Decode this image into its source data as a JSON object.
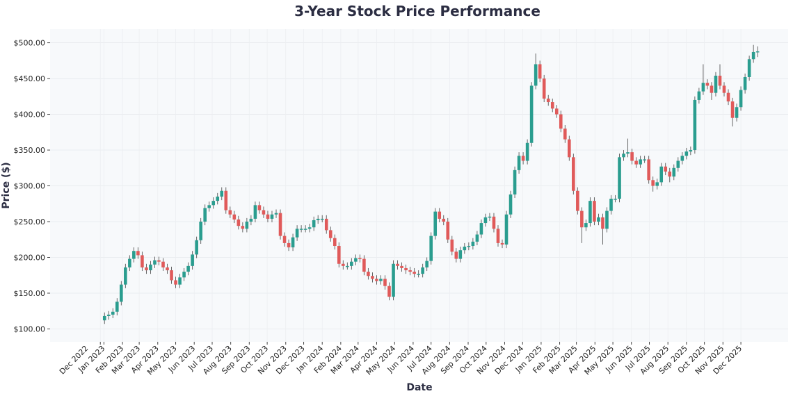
{
  "chart_data": {
    "type": "candlestick",
    "title": "3-Year Stock Price Performance",
    "xlabel": "Date",
    "ylabel": "Price ($)",
    "xlim": [
      "2022-10-03",
      "2026-02-18"
    ],
    "ylim": [
      82,
      519
    ],
    "grid": true,
    "legend": "none",
    "colors": {
      "up": "#2a9d8f",
      "down": "#e05a5a",
      "wick": "#555555",
      "plot_bg": "#f7f9fb",
      "title": "#2b2d42"
    },
    "y_ticks": [
      {
        "value": 100,
        "label": "$100.00"
      },
      {
        "value": 150,
        "label": "$150.00"
      },
      {
        "value": 200,
        "label": "$200.00"
      },
      {
        "value": 250,
        "label": "$250.00"
      },
      {
        "value": 300,
        "label": "$300.00"
      },
      {
        "value": 350,
        "label": "$350.00"
      },
      {
        "value": 400,
        "label": "$400.00"
      },
      {
        "value": 450,
        "label": "$450.00"
      },
      {
        "value": 500,
        "label": "$500.00"
      }
    ],
    "x_ticks": [
      {
        "date": "2022-12-26",
        "label": "Dec 2022"
      },
      {
        "date": "2023-01-01",
        "label": "Jan 2023"
      },
      {
        "date": "2023-02-01",
        "label": "Feb 2023"
      },
      {
        "date": "2023-03-01",
        "label": "Mar 2023"
      },
      {
        "date": "2023-04-01",
        "label": "Apr 2023"
      },
      {
        "date": "2023-05-01",
        "label": "May 2023"
      },
      {
        "date": "2023-06-01",
        "label": "Jun 2023"
      },
      {
        "date": "2023-07-01",
        "label": "Jul 2023"
      },
      {
        "date": "2023-08-01",
        "label": "Aug 2023"
      },
      {
        "date": "2023-09-01",
        "label": "Sep 2023"
      },
      {
        "date": "2023-10-01",
        "label": "Oct 2023"
      },
      {
        "date": "2023-11-01",
        "label": "Nov 2023"
      },
      {
        "date": "2023-12-01",
        "label": "Dec 2023"
      },
      {
        "date": "2024-01-01",
        "label": "Jan 2024"
      },
      {
        "date": "2024-02-01",
        "label": "Feb 2024"
      },
      {
        "date": "2024-03-01",
        "label": "Mar 2024"
      },
      {
        "date": "2024-04-01",
        "label": "Apr 2024"
      },
      {
        "date": "2024-05-01",
        "label": "May 2024"
      },
      {
        "date": "2024-06-01",
        "label": "Jun 2024"
      },
      {
        "date": "2024-07-01",
        "label": "Jul 2024"
      },
      {
        "date": "2024-08-01",
        "label": "Aug 2024"
      },
      {
        "date": "2024-09-01",
        "label": "Sep 2024"
      },
      {
        "date": "2024-10-01",
        "label": "Oct 2024"
      },
      {
        "date": "2024-11-01",
        "label": "Nov 2024"
      },
      {
        "date": "2024-12-01",
        "label": "Dec 2024"
      },
      {
        "date": "2025-01-01",
        "label": "Jan 2025"
      },
      {
        "date": "2025-02-01",
        "label": "Feb 2025"
      },
      {
        "date": "2025-03-01",
        "label": "Mar 2025"
      },
      {
        "date": "2025-04-01",
        "label": "Apr 2025"
      },
      {
        "date": "2025-05-01",
        "label": "May 2025"
      },
      {
        "date": "2025-06-01",
        "label": "Jun 2025"
      },
      {
        "date": "2025-07-01",
        "label": "Jul 2025"
      },
      {
        "date": "2025-08-01",
        "label": "Aug 2025"
      },
      {
        "date": "2025-09-01",
        "label": "Sep 2025"
      },
      {
        "date": "2025-10-01",
        "label": "Oct 2025"
      },
      {
        "date": "2025-11-01",
        "label": "Nov 2025"
      },
      {
        "date": "2025-12-01",
        "label": "Dec 2025"
      }
    ],
    "ohlc_fields": [
      "date",
      "open",
      "high",
      "low",
      "close"
    ],
    "ohlc": [
      [
        "2023-01-02",
        112,
        123,
        107,
        118
      ],
      [
        "2023-01-09",
        118,
        125,
        113,
        120
      ],
      [
        "2023-01-16",
        120,
        129,
        115,
        124
      ],
      [
        "2023-01-23",
        124,
        143,
        119,
        138
      ],
      [
        "2023-01-30",
        138,
        167,
        133,
        162
      ],
      [
        "2023-02-06",
        162,
        191,
        157,
        186
      ],
      [
        "2023-02-13",
        186,
        203,
        181,
        198
      ],
      [
        "2023-02-20",
        198,
        214,
        193,
        209
      ],
      [
        "2023-02-27",
        209,
        214,
        198,
        203
      ],
      [
        "2023-03-06",
        203,
        208,
        181,
        186
      ],
      [
        "2023-03-13",
        186,
        191,
        177,
        182
      ],
      [
        "2023-03-20",
        182,
        195,
        177,
        190
      ],
      [
        "2023-03-27",
        190,
        201,
        185,
        196
      ],
      [
        "2023-04-03",
        196,
        201,
        189,
        194
      ],
      [
        "2023-04-10",
        194,
        199,
        181,
        186
      ],
      [
        "2023-04-17",
        186,
        191,
        177,
        182
      ],
      [
        "2023-04-24",
        182,
        187,
        163,
        168
      ],
      [
        "2023-05-01",
        168,
        173,
        157,
        162
      ],
      [
        "2023-05-08",
        162,
        177,
        157,
        172
      ],
      [
        "2023-05-15",
        172,
        185,
        167,
        180
      ],
      [
        "2023-05-22",
        180,
        193,
        175,
        188
      ],
      [
        "2023-05-29",
        188,
        209,
        183,
        204
      ],
      [
        "2023-06-05",
        204,
        229,
        199,
        224
      ],
      [
        "2023-06-12",
        224,
        255,
        219,
        250
      ],
      [
        "2023-06-19",
        250,
        274,
        245,
        269
      ],
      [
        "2023-06-26",
        269,
        278,
        264,
        273
      ],
      [
        "2023-07-03",
        273,
        284,
        268,
        279
      ],
      [
        "2023-07-10",
        279,
        290,
        274,
        285
      ],
      [
        "2023-07-17",
        285,
        298,
        280,
        293
      ],
      [
        "2023-07-24",
        293,
        298,
        261,
        266
      ],
      [
        "2023-07-31",
        266,
        271,
        255,
        260
      ],
      [
        "2023-08-07",
        260,
        265,
        248,
        253
      ],
      [
        "2023-08-14",
        253,
        258,
        239,
        244
      ],
      [
        "2023-08-21",
        244,
        249,
        235,
        240
      ],
      [
        "2023-08-28",
        240,
        255,
        235,
        250
      ],
      [
        "2023-09-04",
        250,
        259,
        245,
        254
      ],
      [
        "2023-09-11",
        254,
        278,
        249,
        273
      ],
      [
        "2023-09-18",
        273,
        278,
        261,
        266
      ],
      [
        "2023-09-25",
        266,
        271,
        255,
        260
      ],
      [
        "2023-10-02",
        260,
        265,
        249,
        254
      ],
      [
        "2023-10-09",
        254,
        265,
        249,
        260
      ],
      [
        "2023-10-16",
        260,
        267,
        255,
        262
      ],
      [
        "2023-10-23",
        262,
        267,
        225,
        230
      ],
      [
        "2023-10-30",
        230,
        235,
        215,
        220
      ],
      [
        "2023-11-06",
        220,
        225,
        209,
        214
      ],
      [
        "2023-11-13",
        214,
        233,
        209,
        228
      ],
      [
        "2023-11-20",
        228,
        245,
        223,
        240
      ],
      [
        "2023-11-27",
        240,
        245,
        235,
        240
      ],
      [
        "2023-12-04",
        240,
        245,
        235,
        240
      ],
      [
        "2023-12-11",
        240,
        247,
        235,
        242
      ],
      [
        "2023-12-18",
        242,
        257,
        237,
        252
      ],
      [
        "2023-12-25",
        252,
        259,
        247,
        254
      ],
      [
        "2024-01-01",
        254,
        259,
        249,
        254
      ],
      [
        "2024-01-08",
        254,
        259,
        233,
        238
      ],
      [
        "2024-01-15",
        238,
        243,
        222,
        227
      ],
      [
        "2024-01-22",
        227,
        232,
        211,
        216
      ],
      [
        "2024-01-29",
        216,
        221,
        186,
        191
      ],
      [
        "2024-02-05",
        191,
        196,
        183,
        188
      ],
      [
        "2024-02-12",
        188,
        193,
        183,
        188
      ],
      [
        "2024-02-19",
        188,
        199,
        183,
        194
      ],
      [
        "2024-02-26",
        194,
        204,
        189,
        199
      ],
      [
        "2024-03-04",
        199,
        204,
        193,
        198
      ],
      [
        "2024-03-11",
        198,
        203,
        175,
        180
      ],
      [
        "2024-03-18",
        180,
        185,
        169,
        174
      ],
      [
        "2024-03-25",
        174,
        179,
        165,
        170
      ],
      [
        "2024-04-01",
        170,
        175,
        162,
        167
      ],
      [
        "2024-04-08",
        167,
        175,
        162,
        170
      ],
      [
        "2024-04-15",
        170,
        175,
        155,
        160
      ],
      [
        "2024-04-22",
        160,
        165,
        140,
        145
      ],
      [
        "2024-04-29",
        145,
        196,
        140,
        191
      ],
      [
        "2024-05-06",
        191,
        196,
        183,
        188
      ],
      [
        "2024-05-13",
        188,
        193,
        180,
        185
      ],
      [
        "2024-05-20",
        185,
        190,
        177,
        182
      ],
      [
        "2024-05-27",
        182,
        187,
        175,
        180
      ],
      [
        "2024-06-03",
        180,
        185,
        172,
        177
      ],
      [
        "2024-06-10",
        177,
        182,
        172,
        177
      ],
      [
        "2024-06-17",
        177,
        191,
        172,
        186
      ],
      [
        "2024-06-24",
        186,
        200,
        181,
        195
      ],
      [
        "2024-07-01",
        195,
        235,
        190,
        230
      ],
      [
        "2024-07-08",
        230,
        269,
        225,
        264
      ],
      [
        "2024-07-15",
        264,
        269,
        249,
        254
      ],
      [
        "2024-07-22",
        254,
        259,
        245,
        250
      ],
      [
        "2024-07-29",
        250,
        255,
        220,
        225
      ],
      [
        "2024-08-05",
        225,
        230,
        203,
        208
      ],
      [
        "2024-08-12",
        208,
        213,
        193,
        198
      ],
      [
        "2024-08-19",
        198,
        215,
        193,
        210
      ],
      [
        "2024-08-26",
        210,
        220,
        205,
        215
      ],
      [
        "2024-09-02",
        215,
        221,
        210,
        216
      ],
      [
        "2024-09-09",
        216,
        227,
        211,
        222
      ],
      [
        "2024-09-16",
        222,
        237,
        217,
        232
      ],
      [
        "2024-09-23",
        232,
        253,
        227,
        248
      ],
      [
        "2024-09-30",
        248,
        261,
        243,
        256
      ],
      [
        "2024-10-07",
        256,
        262,
        251,
        257
      ],
      [
        "2024-10-14",
        257,
        262,
        235,
        240
      ],
      [
        "2024-10-21",
        240,
        245,
        215,
        220
      ],
      [
        "2024-10-28",
        220,
        225,
        213,
        218
      ],
      [
        "2024-11-04",
        218,
        265,
        213,
        260
      ],
      [
        "2024-11-11",
        260,
        293,
        255,
        288
      ],
      [
        "2024-11-18",
        288,
        327,
        283,
        322
      ],
      [
        "2024-11-25",
        322,
        347,
        317,
        342
      ],
      [
        "2024-12-02",
        342,
        347,
        330,
        335
      ],
      [
        "2024-12-09",
        335,
        365,
        330,
        360
      ],
      [
        "2024-12-16",
        360,
        445,
        355,
        440
      ],
      [
        "2024-12-23",
        440,
        485,
        435,
        470
      ],
      [
        "2024-12-30",
        470,
        475,
        445,
        450
      ],
      [
        "2025-01-06",
        450,
        455,
        417,
        422
      ],
      [
        "2025-01-13",
        422,
        427,
        412,
        417
      ],
      [
        "2025-01-20",
        417,
        422,
        403,
        408
      ],
      [
        "2025-01-27",
        408,
        413,
        395,
        400
      ],
      [
        "2025-02-03",
        400,
        405,
        375,
        380
      ],
      [
        "2025-02-10",
        380,
        385,
        360,
        365
      ],
      [
        "2025-02-17",
        365,
        370,
        335,
        340
      ],
      [
        "2025-02-24",
        340,
        345,
        288,
        293
      ],
      [
        "2025-03-03",
        293,
        298,
        260,
        265
      ],
      [
        "2025-03-10",
        265,
        270,
        220,
        242
      ],
      [
        "2025-03-17",
        242,
        253,
        237,
        248
      ],
      [
        "2025-03-24",
        248,
        284,
        243,
        279
      ],
      [
        "2025-03-31",
        279,
        284,
        245,
        250
      ],
      [
        "2025-04-07",
        250,
        261,
        245,
        256
      ],
      [
        "2025-04-14",
        256,
        261,
        218,
        240
      ],
      [
        "2025-04-21",
        240,
        270,
        235,
        265
      ],
      [
        "2025-04-28",
        265,
        287,
        260,
        282
      ],
      [
        "2025-05-05",
        282,
        287,
        277,
        282
      ],
      [
        "2025-05-12",
        282,
        345,
        277,
        340
      ],
      [
        "2025-05-19",
        340,
        350,
        335,
        345
      ],
      [
        "2025-05-26",
        345,
        366,
        340,
        347
      ],
      [
        "2025-06-02",
        347,
        352,
        330,
        335
      ],
      [
        "2025-06-09",
        335,
        340,
        325,
        330
      ],
      [
        "2025-06-16",
        330,
        342,
        325,
        337
      ],
      [
        "2025-06-23",
        337,
        342,
        332,
        337
      ],
      [
        "2025-06-30",
        337,
        342,
        303,
        308
      ],
      [
        "2025-07-07",
        308,
        313,
        292,
        300
      ],
      [
        "2025-07-14",
        300,
        310,
        295,
        305
      ],
      [
        "2025-07-21",
        305,
        332,
        300,
        327
      ],
      [
        "2025-07-28",
        327,
        332,
        315,
        320
      ],
      [
        "2025-08-04",
        320,
        325,
        305,
        313
      ],
      [
        "2025-08-11",
        313,
        330,
        308,
        325
      ],
      [
        "2025-08-18",
        325,
        340,
        320,
        335
      ],
      [
        "2025-08-25",
        335,
        347,
        330,
        342
      ],
      [
        "2025-09-01",
        342,
        353,
        337,
        348
      ],
      [
        "2025-09-08",
        348,
        355,
        343,
        350
      ],
      [
        "2025-09-15",
        350,
        425,
        345,
        420
      ],
      [
        "2025-09-22",
        420,
        437,
        415,
        432
      ],
      [
        "2025-09-29",
        432,
        470,
        427,
        444
      ],
      [
        "2025-10-06",
        444,
        449,
        435,
        440
      ],
      [
        "2025-10-13",
        440,
        445,
        420,
        430
      ],
      [
        "2025-10-20",
        430,
        459,
        425,
        454
      ],
      [
        "2025-10-27",
        454,
        470,
        435,
        440
      ],
      [
        "2025-11-03",
        440,
        445,
        425,
        430
      ],
      [
        "2025-11-10",
        430,
        435,
        413,
        418
      ],
      [
        "2025-11-17",
        418,
        423,
        383,
        395
      ],
      [
        "2025-11-24",
        395,
        415,
        390,
        410
      ],
      [
        "2025-12-01",
        410,
        439,
        405,
        434
      ],
      [
        "2025-12-08",
        434,
        457,
        429,
        452
      ],
      [
        "2025-12-15",
        452,
        482,
        447,
        477
      ],
      [
        "2025-12-22",
        477,
        497,
        472,
        487
      ],
      [
        "2025-12-29",
        487,
        495,
        480,
        488
      ]
    ]
  }
}
